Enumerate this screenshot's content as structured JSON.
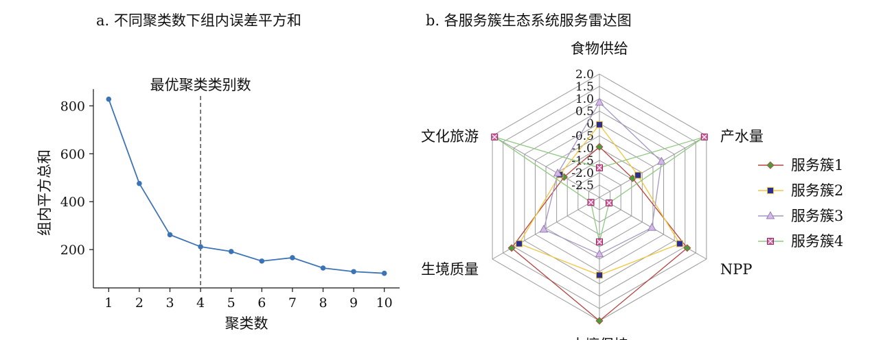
{
  "panel_a_title": "a. 不同聚类数下组内误差平方和",
  "panel_b_title": "b. 各服务簇生态系统服务雷达图",
  "chart_data": [
    {
      "type": "line",
      "x": [
        1,
        2,
        3,
        4,
        5,
        6,
        7,
        8,
        9,
        10
      ],
      "values": [
        828,
        476,
        262,
        212,
        192,
        152,
        166,
        123,
        108,
        101
      ],
      "xlabel": "聚类数",
      "ylabel": "组内平方总和",
      "xticks": [
        "1",
        "2",
        "3",
        "4",
        "5",
        "6",
        "7",
        "8",
        "9",
        "10"
      ],
      "yticks": [
        "200",
        "400",
        "600",
        "800"
      ],
      "xlim": [
        0.5,
        10.5
      ],
      "ylim": [
        40,
        870
      ],
      "annotation": {
        "text": "最优聚类类别数",
        "x": 4
      },
      "color": "#3b73b5",
      "grid": false
    },
    {
      "type": "radar",
      "axes": [
        "食物供给",
        "产水量",
        "NPP",
        "土壤保持",
        "生境质量",
        "文化旅游"
      ],
      "rticks": [
        "2.0",
        "1.5",
        "1.0",
        "0.5",
        "0",
        "-0.5",
        "-1.0",
        "-1.5",
        "-2.0",
        "-2.5"
      ],
      "rlim": [
        -3.0,
        2.0
      ],
      "legend_position": "right",
      "series": [
        {
          "name": "服务簇1",
          "values": [
            -0.95,
            -1.45,
            1.1,
            2.0,
            1.1,
            -1.35
          ],
          "color": "#b5433e",
          "marker": "diamond",
          "marker_fill": "#4e9a3f"
        },
        {
          "name": "服务簇2",
          "values": [
            -0.05,
            -1.2,
            0.75,
            0.15,
            0.75,
            -1.15
          ],
          "color": "#f2c53d",
          "marker": "square",
          "marker_fill": "#2b2f8f"
        },
        {
          "name": "服务簇3",
          "values": [
            0.85,
            -0.1,
            -0.55,
            -0.7,
            -0.4,
            -1.05
          ],
          "color": "#a596c4",
          "marker": "triangle",
          "marker_fill": "#d6b7e6"
        },
        {
          "name": "服务簇4",
          "values": [
            -1.8,
            1.9,
            -2.55,
            -1.2,
            -2.6,
            1.9
          ],
          "color": "#8ec97f",
          "marker": "box-x",
          "marker_fill": "#d95ca0"
        }
      ]
    }
  ]
}
